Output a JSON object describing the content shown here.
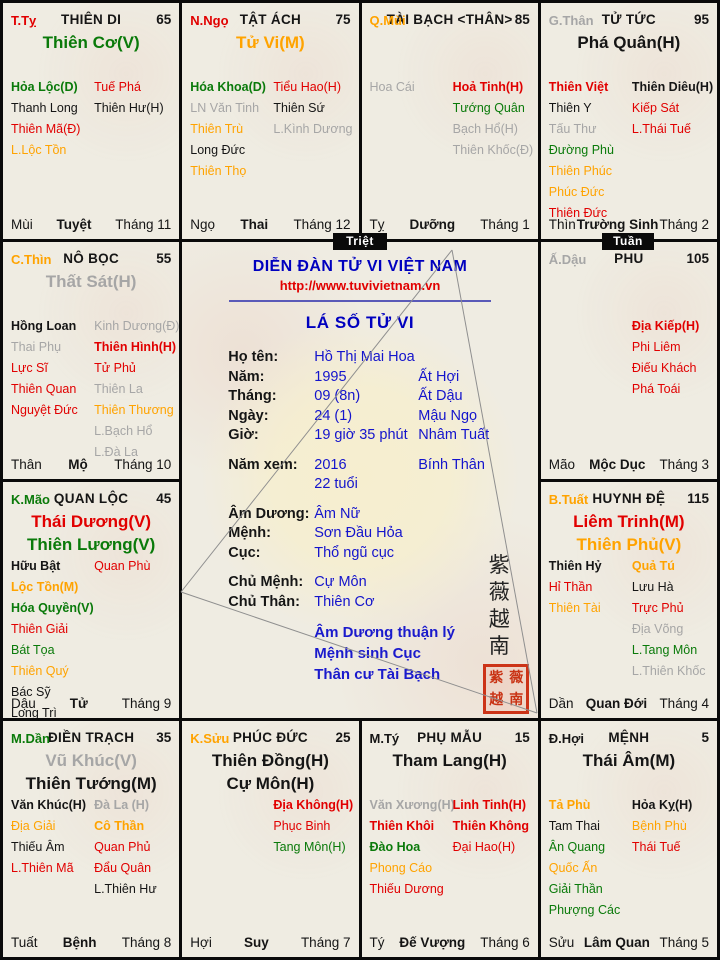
{
  "palette": {
    "red": "#e10000",
    "green": "#0a7a0a",
    "orange": "#ffa300",
    "gray": "#a6a6a6",
    "black": "#151515",
    "blue": "#1414cc",
    "title_blue": "#0000bf",
    "badge_bg": "#0a0a0a",
    "cell_bg": "#efece2",
    "seal_red": "#cc3317"
  },
  "badges": {
    "triet": "Triệt",
    "tuan": "Tuần"
  },
  "center": {
    "forum_title": "DIỄN ĐÀN TỬ VI VIỆT NAM",
    "url": "http://www.tuvivietnam.vn",
    "chart_title": "LÁ SỐ TỬ VI",
    "info_rows": [
      {
        "label": "Họ tên:",
        "value": "Hồ Thị Mai Hoa",
        "extra": ""
      },
      {
        "label": "Năm:",
        "value": "1995",
        "extra": "Ất Hợi"
      },
      {
        "label": "Tháng:",
        "value": "09 (8n)",
        "extra": "Ất Dậu"
      },
      {
        "label": "Ngày:",
        "value": "24 (1)",
        "extra": "Mậu Ngọ"
      },
      {
        "label": "Giờ:",
        "value": "19 giờ 35 phút",
        "extra": "Nhâm Tuất"
      },
      {
        "label": "Năm xem:",
        "value": "2016",
        "extra": "Bính Thân",
        "gap": true
      },
      {
        "label": "",
        "value": "22 tuổi",
        "extra": ""
      },
      {
        "label": "Âm Dương:",
        "value": "Âm Nữ",
        "extra": "",
        "gap": true
      },
      {
        "label": "Mệnh:",
        "value": "Sơn Đầu Hỏa",
        "extra": ""
      },
      {
        "label": "Cục:",
        "value": "Thổ ngũ cục",
        "extra": ""
      },
      {
        "label": "Chủ Mệnh:",
        "value": "Cự Môn",
        "extra": "",
        "gap": true
      },
      {
        "label": "Chủ Thân:",
        "value": "Thiên Cơ",
        "extra": ""
      }
    ],
    "notes": [
      "Âm Dương thuận lý",
      "Mệnh sinh Cục",
      "Thân cư Tài Bạch"
    ],
    "seal_chars": [
      "紫",
      "薇",
      "越",
      "南"
    ]
  },
  "palaces": [
    {
      "id": "thien-di",
      "row": 1,
      "col": 1,
      "stem": {
        "t": "T.Tỵ",
        "c": "red"
      },
      "name": "THIÊN DI",
      "num": "65",
      "main": [
        {
          "t": "Thiên Cơ(V)",
          "c": "green"
        }
      ],
      "left": [
        {
          "t": "Hỏa Lộc(D)",
          "c": "green",
          "b": true
        },
        {
          "t": "Thanh Long",
          "c": "black"
        },
        {
          "t": "Thiên Mã(Đ)",
          "c": "red"
        },
        {
          "t": "L.Lộc Tồn",
          "c": "orange"
        }
      ],
      "right": [
        {
          "t": "Tuế Phá",
          "c": "red"
        },
        {
          "t": "Thiên Hư(H)",
          "c": "black"
        }
      ],
      "foot": {
        "branch": "Mùi",
        "stage": "Tuyệt",
        "month": "Tháng 11"
      }
    },
    {
      "id": "tat-ach",
      "row": 1,
      "col": 2,
      "stem": {
        "t": "N.Ngọ",
        "c": "red"
      },
      "name": "TẬT ÁCH",
      "num": "75",
      "main": [
        {
          "t": "Tử Vi(M)",
          "c": "orange"
        }
      ],
      "left": [
        {
          "t": "Hóa Khoa(D)",
          "c": "green",
          "b": true
        },
        {
          "t": "LN Văn Tinh",
          "c": "gray"
        },
        {
          "t": "Thiên Trù",
          "c": "orange"
        },
        {
          "t": "Long Đức",
          "c": "black"
        },
        {
          "t": "Thiên Thọ",
          "c": "orange"
        }
      ],
      "right": [
        {
          "t": "Tiểu Hao(H)",
          "c": "red"
        },
        {
          "t": "Thiên Sứ",
          "c": "black"
        },
        {
          "t": "L.Kình Dương",
          "c": "gray"
        }
      ],
      "foot": {
        "branch": "Ngọ",
        "stage": "Thai",
        "month": "Tháng 12"
      }
    },
    {
      "id": "tai-bach",
      "row": 1,
      "col": 3,
      "stem": {
        "t": "Q.Mùi",
        "c": "orange"
      },
      "name": "TÀI BẠCH <THÂN>",
      "num": "85",
      "main": [],
      "left": [
        {
          "t": "Hoa Cái",
          "c": "gray"
        }
      ],
      "right": [
        {
          "t": "Hoả Tinh(H)",
          "c": "red",
          "b": true
        },
        {
          "t": "Tướng Quân",
          "c": "green"
        },
        {
          "t": "Bạch Hổ(H)",
          "c": "gray"
        },
        {
          "t": "Thiên Khốc(Đ)",
          "c": "gray"
        }
      ],
      "foot": {
        "branch": "Tỵ",
        "stage": "Dưỡng",
        "month": "Tháng 1"
      }
    },
    {
      "id": "tu-tuc",
      "row": 1,
      "col": 4,
      "stem": {
        "t": "G.Thân",
        "c": "gray"
      },
      "name": "TỬ TỨC",
      "num": "95",
      "main": [
        {
          "t": "Phá Quân(H)",
          "c": "black"
        }
      ],
      "left": [
        {
          "t": "Thiên Việt",
          "c": "red",
          "b": true
        },
        {
          "t": "Thiên Y",
          "c": "black"
        },
        {
          "t": "Tấu Thư",
          "c": "gray"
        },
        {
          "t": "Đường Phù",
          "c": "green"
        },
        {
          "t": "Thiên Phúc",
          "c": "orange"
        },
        {
          "t": "Phúc Đức",
          "c": "orange"
        },
        {
          "t": "Thiên Đức",
          "c": "red"
        }
      ],
      "right": [
        {
          "t": "Thiên Diêu(H)",
          "c": "black",
          "b": true
        },
        {
          "t": "Kiếp Sát",
          "c": "red"
        },
        {
          "t": "L.Thái Tuế",
          "c": "red"
        }
      ],
      "foot": {
        "branch": "Thìn",
        "stage": "Trường Sinh",
        "month": "Tháng 2"
      }
    },
    {
      "id": "no-boc",
      "row": 2,
      "col": 1,
      "stem": {
        "t": "C.Thìn",
        "c": "orange"
      },
      "name": "NÔ BỌC",
      "num": "55",
      "main": [
        {
          "t": "Thất Sát(H)",
          "c": "gray"
        }
      ],
      "left": [
        {
          "t": "Hồng Loan",
          "c": "black",
          "b": true
        },
        {
          "t": "Thai Phụ",
          "c": "gray"
        },
        {
          "t": "Lực Sĩ",
          "c": "red"
        },
        {
          "t": "Thiên Quan",
          "c": "red"
        },
        {
          "t": "Nguyệt Đức",
          "c": "red"
        }
      ],
      "right": [
        {
          "t": "Kinh Dương(Đ)",
          "c": "gray"
        },
        {
          "t": "Thiên Hình(H)",
          "c": "red",
          "b": true
        },
        {
          "t": "Tử Phủ",
          "c": "red"
        },
        {
          "t": "Thiên La",
          "c": "gray"
        },
        {
          "t": "Thiên Thương",
          "c": "orange"
        },
        {
          "t": "L.Bạch Hổ",
          "c": "gray"
        },
        {
          "t": "L.Đà La",
          "c": "gray"
        }
      ],
      "foot": {
        "branch": "Thân",
        "stage": "Mộ",
        "month": "Tháng 10"
      }
    },
    {
      "id": "phu",
      "row": 2,
      "col": 4,
      "stem": {
        "t": "Ấ.Dậu",
        "c": "gray"
      },
      "name": "PHU",
      "num": "105",
      "main": [],
      "left": [],
      "right": [
        {
          "t": "Địa Kiếp(H)",
          "c": "red",
          "b": true
        },
        {
          "t": "Phi Liêm",
          "c": "red"
        },
        {
          "t": "Điếu Khách",
          "c": "red"
        },
        {
          "t": "Phá Toái",
          "c": "red"
        }
      ],
      "foot": {
        "branch": "Mão",
        "stage": "Mộc Dục",
        "month": "Tháng 3"
      }
    },
    {
      "id": "quan-loc",
      "row": 3,
      "col": 1,
      "stem": {
        "t": "K.Mão",
        "c": "green"
      },
      "name": "QUAN LỘC",
      "num": "45",
      "main": [
        {
          "t": "Thái Dương(V)",
          "c": "red"
        },
        {
          "t": "Thiên Lương(V)",
          "c": "green"
        }
      ],
      "left": [
        {
          "t": "Hữu Bật",
          "c": "black",
          "b": true
        },
        {
          "t": "Lộc Tồn(M)",
          "c": "orange",
          "b": true
        },
        {
          "t": "Hóa Quyền(V)",
          "c": "green",
          "b": true
        },
        {
          "t": "Thiên Giải",
          "c": "red"
        },
        {
          "t": "Bát Tọa",
          "c": "green"
        },
        {
          "t": "Thiên Quý",
          "c": "orange"
        },
        {
          "t": "Bác Sỹ",
          "c": "black"
        },
        {
          "t": "Long Trì",
          "c": "black"
        }
      ],
      "right": [
        {
          "t": "Quan Phù",
          "c": "red"
        }
      ],
      "foot": {
        "branch": "Dậu",
        "stage": "Tử",
        "month": "Tháng 9"
      }
    },
    {
      "id": "huynh-de",
      "row": 3,
      "col": 4,
      "stem": {
        "t": "B.Tuất",
        "c": "orange"
      },
      "name": "HUYNH ĐỆ",
      "num": "115",
      "main": [
        {
          "t": "Liêm Trinh(M)",
          "c": "red"
        },
        {
          "t": "Thiên Phủ(V)",
          "c": "orange"
        }
      ],
      "left": [
        {
          "t": "Thiên Hỷ",
          "c": "black",
          "b": true
        },
        {
          "t": "Hỉ Thần",
          "c": "red"
        },
        {
          "t": "Thiên Tài",
          "c": "orange"
        }
      ],
      "right": [
        {
          "t": "Quả Tú",
          "c": "orange",
          "b": true
        },
        {
          "t": "Lưu Hà",
          "c": "black"
        },
        {
          "t": "Trực Phủ",
          "c": "red"
        },
        {
          "t": "Địa Võng",
          "c": "gray"
        },
        {
          "t": "L.Tang Môn",
          "c": "green"
        },
        {
          "t": "L.Thiên Khốc",
          "c": "gray"
        }
      ],
      "foot": {
        "branch": "Dần",
        "stage": "Quan Đới",
        "month": "Tháng 4"
      }
    },
    {
      "id": "dien-trach",
      "row": 4,
      "col": 1,
      "stem": {
        "t": "M.Dần",
        "c": "green"
      },
      "name": "ĐIỀN TRẠCH",
      "num": "35",
      "main": [
        {
          "t": "Vũ Khúc(V)",
          "c": "gray"
        },
        {
          "t": "Thiên Tướng(M)",
          "c": "black"
        }
      ],
      "left": [
        {
          "t": "Văn Khúc(H)",
          "c": "black",
          "b": true
        },
        {
          "t": "Địa Giải",
          "c": "orange"
        },
        {
          "t": "Thiếu Âm",
          "c": "black"
        },
        {
          "t": "L.Thiên Mã",
          "c": "red"
        }
      ],
      "right": [
        {
          "t": "Đà La (H)",
          "c": "gray",
          "b": true
        },
        {
          "t": "Cô Thần",
          "c": "orange",
          "b": true
        },
        {
          "t": "Quan Phủ",
          "c": "red"
        },
        {
          "t": "Đẩu Quân",
          "c": "red"
        },
        {
          "t": "L.Thiên Hư",
          "c": "black"
        }
      ],
      "foot": {
        "branch": "Tuất",
        "stage": "Bệnh",
        "month": "Tháng 8"
      }
    },
    {
      "id": "phuc-duc",
      "row": 4,
      "col": 2,
      "stem": {
        "t": "K.Sửu",
        "c": "orange"
      },
      "name": "PHÚC ĐỨC",
      "num": "25",
      "main": [
        {
          "t": "Thiên Đồng(H)",
          "c": "black"
        },
        {
          "t": "Cự Môn(H)",
          "c": "black"
        }
      ],
      "left": [],
      "right": [
        {
          "t": "Địa Không(H)",
          "c": "red",
          "b": true
        },
        {
          "t": "Phục Binh",
          "c": "red"
        },
        {
          "t": "Tang Môn(H)",
          "c": "green"
        }
      ],
      "foot": {
        "branch": "Hợi",
        "stage": "Suy",
        "month": "Tháng 7"
      }
    },
    {
      "id": "phu-mau",
      "row": 4,
      "col": 3,
      "stem": {
        "t": "M.Tý",
        "c": "black"
      },
      "name": "PHỤ MẪU",
      "num": "15",
      "main": [
        {
          "t": "Tham Lang(H)",
          "c": "black"
        }
      ],
      "left": [
        {
          "t": "Văn Xương(H)",
          "c": "gray",
          "b": true
        },
        {
          "t": "Thiên Khôi",
          "c": "red",
          "b": true
        },
        {
          "t": "Đào Hoa",
          "c": "green",
          "b": true
        },
        {
          "t": "Phong Cáo",
          "c": "orange"
        },
        {
          "t": "Thiếu Dương",
          "c": "red"
        }
      ],
      "right": [
        {
          "t": "Linh Tinh(H)",
          "c": "red",
          "b": true
        },
        {
          "t": "Thiên Không",
          "c": "red",
          "b": true
        },
        {
          "t": "Đại Hao(H)",
          "c": "red"
        }
      ],
      "foot": {
        "branch": "Tý",
        "stage": "Đế Vượng",
        "month": "Tháng 6"
      }
    },
    {
      "id": "menh",
      "row": 4,
      "col": 4,
      "stem": {
        "t": "Đ.Hợi",
        "c": "black"
      },
      "name": "MỆNH",
      "num": "5",
      "main": [
        {
          "t": "Thái Âm(M)",
          "c": "black"
        }
      ],
      "left": [
        {
          "t": "Tả Phù",
          "c": "orange",
          "b": true
        },
        {
          "t": "Tam Thai",
          "c": "black"
        },
        {
          "t": "Ân Quang",
          "c": "green"
        },
        {
          "t": "Quốc Ấn",
          "c": "orange"
        },
        {
          "t": "Giải Thần",
          "c": "green"
        },
        {
          "t": "Phượng Các",
          "c": "green"
        }
      ],
      "right": [
        {
          "t": "Hỏa Kỵ(H)",
          "c": "black",
          "b": true
        },
        {
          "t": "Bệnh Phù",
          "c": "orange"
        },
        {
          "t": "Thái Tuế",
          "c": "red"
        }
      ],
      "foot": {
        "branch": "Sửu",
        "stage": "Lâm Quan",
        "month": "Tháng 5"
      }
    }
  ]
}
